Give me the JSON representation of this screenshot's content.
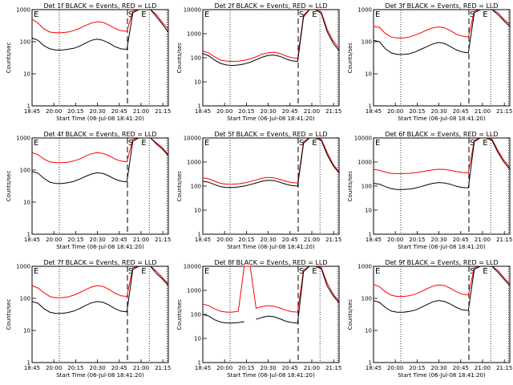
{
  "chart_data": [
    {
      "type": "line",
      "title": "Det 1f  BLACK = Events, RED = LLD",
      "xlabel": "Start Time (06-Jul-08 18:41:20)",
      "ylabel": "Counts/sec",
      "x_tick_labels": [
        "18:45",
        "20:00",
        "20:15",
        "20:30",
        "20:45",
        "21:00",
        "21:15"
      ],
      "y_tick_labels": [
        "1",
        "10",
        "100",
        "1000"
      ],
      "ylim": [
        1,
        1000
      ],
      "yscale": "log",
      "markers": [
        "S",
        "E"
      ],
      "series": [
        {
          "name": "LLD",
          "color": "#ff0000",
          "values": [
            500,
            380,
            250,
            200,
            190,
            190,
            200,
            220,
            260,
            320,
            380,
            420,
            400,
            330,
            260,
            220,
            210,
            900,
            1000,
            1000,
            1000,
            700,
            400,
            250
          ]
        },
        {
          "name": "Events",
          "color": "#000000",
          "values": [
            130,
            110,
            75,
            60,
            55,
            55,
            58,
            62,
            72,
            90,
            110,
            120,
            110,
            90,
            70,
            60,
            58,
            800,
            1000,
            1000,
            1000,
            600,
            350,
            200
          ]
        }
      ]
    },
    {
      "type": "line",
      "title": "Det 2f  BLACK = Events, RED = LLD",
      "xlabel": "Start Time (06-Jul-08 18:41:20)",
      "ylabel": "Counts/sec",
      "x_tick_labels": [
        "18:45",
        "20:00",
        "20:15",
        "20:30",
        "20:45",
        "21:00",
        "21:15"
      ],
      "y_tick_labels": [
        "1",
        "10",
        "100",
        "1000",
        "10000"
      ],
      "ylim": [
        1,
        10000
      ],
      "yscale": "log",
      "markers": [
        "S",
        "E"
      ],
      "series": [
        {
          "name": "LLD",
          "color": "#ff0000",
          "values": [
            190,
            160,
            110,
            80,
            72,
            70,
            72,
            78,
            90,
            110,
            140,
            160,
            170,
            150,
            120,
            100,
            95,
            6000,
            10000,
            10000,
            8000,
            1500,
            500,
            250
          ]
        },
        {
          "name": "Events",
          "color": "#000000",
          "values": [
            150,
            120,
            80,
            58,
            50,
            48,
            50,
            55,
            65,
            82,
            105,
            125,
            130,
            115,
            90,
            75,
            70,
            5000,
            10000,
            10000,
            7000,
            1200,
            400,
            200
          ]
        }
      ]
    },
    {
      "type": "line",
      "title": "Det 3f  BLACK = Events, RED = LLD",
      "xlabel": "Start Time (06-Jul-08 18:41:20)",
      "ylabel": "Counts/sec",
      "x_tick_labels": [
        "18:45",
        "20:00",
        "20:15",
        "20:30",
        "20:45",
        "21:00",
        "21:15"
      ],
      "y_tick_labels": [
        "1",
        "10",
        "100",
        "1000"
      ],
      "ylim": [
        1,
        1000
      ],
      "yscale": "log",
      "markers": [
        "S",
        "E"
      ],
      "series": [
        {
          "name": "LLD",
          "color": "#ff0000",
          "values": [
            300,
            280,
            180,
            140,
            130,
            130,
            140,
            160,
            190,
            230,
            270,
            290,
            270,
            220,
            170,
            150,
            140,
            900,
            1000,
            1000,
            1000,
            800,
            500,
            350
          ]
        },
        {
          "name": "Events",
          "color": "#000000",
          "values": [
            110,
            100,
            60,
            45,
            40,
            40,
            42,
            48,
            58,
            70,
            85,
            95,
            88,
            70,
            55,
            48,
            45,
            800,
            1000,
            1000,
            1000,
            700,
            450,
            300
          ]
        }
      ]
    },
    {
      "type": "line",
      "title": "Det 4f  BLACK = Events, RED = LLD",
      "xlabel": "Start Time (06-Jul-08 18:41:20)",
      "ylabel": "Counts/sec",
      "x_tick_labels": [
        "18:45",
        "20:00",
        "20:15",
        "20:30",
        "20:45",
        "21:00",
        "21:15"
      ],
      "y_tick_labels": [
        "1",
        "10",
        "100",
        "1000"
      ],
      "ylim": [
        1,
        1000
      ],
      "yscale": "log",
      "markers": [
        "S",
        "E"
      ],
      "series": [
        {
          "name": "LLD",
          "color": "#ff0000",
          "values": [
            350,
            300,
            220,
            180,
            170,
            170,
            175,
            190,
            220,
            270,
            320,
            350,
            330,
            280,
            220,
            190,
            180,
            900,
            1000,
            1000,
            1000,
            700,
            500,
            300
          ]
        },
        {
          "name": "Events",
          "color": "#000000",
          "values": [
            90,
            80,
            55,
            42,
            38,
            38,
            40,
            44,
            52,
            63,
            75,
            82,
            78,
            65,
            52,
            45,
            43,
            800,
            1000,
            1000,
            1000,
            650,
            450,
            280
          ]
        }
      ]
    },
    {
      "type": "line",
      "title": "Det 5f  BLACK = Events, RED = LLD",
      "xlabel": "Start Time (06-Jul-08 18:41:20)",
      "ylabel": "Counts/sec",
      "x_tick_labels": [
        "18:45",
        "20:00",
        "20:15",
        "20:30",
        "20:45",
        "21:00",
        "21:15"
      ],
      "y_tick_labels": [
        "1",
        "10",
        "100",
        "1000",
        "10000"
      ],
      "ylim": [
        1,
        10000
      ],
      "yscale": "log",
      "markers": [
        "S",
        "E"
      ],
      "series": [
        {
          "name": "LLD",
          "color": "#ff0000",
          "values": [
            220,
            200,
            160,
            130,
            120,
            120,
            125,
            135,
            155,
            180,
            210,
            230,
            220,
            190,
            160,
            140,
            135,
            7000,
            10000,
            10000,
            9000,
            2500,
            800,
            400
          ]
        },
        {
          "name": "Events",
          "color": "#000000",
          "values": [
            160,
            145,
            115,
            95,
            88,
            88,
            92,
            100,
            115,
            135,
            160,
            175,
            168,
            145,
            120,
            105,
            100,
            6000,
            10000,
            10000,
            8000,
            2000,
            700,
            350
          ]
        }
      ]
    },
    {
      "type": "line",
      "title": "Det 6f  BLACK = Events, RED = LLD",
      "xlabel": "Start Time (06-Jul-08 18:41:20)",
      "ylabel": "Counts/sec",
      "x_tick_labels": [
        "18:45",
        "20:00",
        "20:15",
        "20:30",
        "20:45",
        "21:00",
        "21:15"
      ],
      "y_tick_labels": [
        "1",
        "10",
        "100",
        "1000",
        "10000"
      ],
      "ylim": [
        1,
        10000
      ],
      "yscale": "log",
      "markers": [
        "S",
        "E"
      ],
      "series": [
        {
          "name": "LLD",
          "color": "#ff0000",
          "values": [
            500,
            450,
            380,
            340,
            330,
            330,
            340,
            360,
            390,
            430,
            470,
            500,
            490,
            450,
            400,
            370,
            360,
            8000,
            10000,
            10000,
            9000,
            3000,
            1200,
            600
          ]
        },
        {
          "name": "Events",
          "color": "#000000",
          "values": [
            130,
            120,
            95,
            78,
            72,
            72,
            75,
            82,
            95,
            112,
            130,
            140,
            135,
            118,
            98,
            88,
            85,
            7000,
            10000,
            10000,
            8000,
            2500,
            1000,
            500
          ]
        }
      ]
    },
    {
      "type": "line",
      "title": "Det 7f  BLACK = Events, RED = LLD",
      "xlabel": "Start Time (06-Jul-08 18:41:20)",
      "ylabel": "Counts/sec",
      "x_tick_labels": [
        "18:45",
        "20:00",
        "20:15",
        "20:30",
        "20:45",
        "21:00",
        "21:15"
      ],
      "y_tick_labels": [
        "1",
        "10",
        "100",
        "1000"
      ],
      "ylim": [
        1,
        1000
      ],
      "yscale": "log",
      "markers": [
        "S",
        "E"
      ],
      "series": [
        {
          "name": "LLD",
          "color": "#ff0000",
          "values": [
            250,
            210,
            150,
            115,
            105,
            105,
            110,
            125,
            150,
            185,
            225,
            250,
            235,
            190,
            145,
            120,
            115,
            900,
            1000,
            1000,
            1000,
            700,
            450,
            280
          ]
        },
        {
          "name": "Events",
          "color": "#000000",
          "values": [
            80,
            70,
            48,
            37,
            34,
            34,
            36,
            40,
            48,
            60,
            72,
            80,
            75,
            62,
            48,
            40,
            38,
            800,
            1000,
            1000,
            1000,
            600,
            400,
            250
          ]
        }
      ]
    },
    {
      "type": "line",
      "title": "Det 8f  BLACK = Events, RED = LLD",
      "xlabel": "Start Time (06-Jul-08 18:41:20)",
      "ylabel": "Counts/sec",
      "x_tick_labels": [
        "18:45",
        "20:00",
        "20:15",
        "20:30",
        "20:45",
        "21:00",
        "21:15"
      ],
      "y_tick_labels": [
        "1",
        "10",
        "100",
        "1000",
        "10000"
      ],
      "ylim": [
        1,
        10000
      ],
      "yscale": "log",
      "markers": [
        "S",
        "E"
      ],
      "series": [
        {
          "name": "LLD",
          "color": "#ff0000",
          "values": [
            270,
            230,
            170,
            135,
            125,
            125,
            135,
            10000,
            10000,
            180,
            210,
            230,
            220,
            185,
            150,
            130,
            125,
            7000,
            10000,
            10000,
            9000,
            2000,
            700,
            350
          ]
        },
        {
          "name": "Events",
          "color": "#000000",
          "values": [
            100,
            85,
            60,
            48,
            44,
            44,
            46,
            50,
            null,
            62,
            75,
            85,
            80,
            66,
            52,
            46,
            44,
            6000,
            10000,
            10000,
            8000,
            1500,
            600,
            300
          ]
        }
      ]
    },
    {
      "type": "line",
      "title": "Det 9f  BLACK = Events, RED = LLD",
      "xlabel": "Start Time (06-Jul-08 18:41:20)",
      "ylabel": "Counts/sec",
      "x_tick_labels": [
        "18:45",
        "20:00",
        "20:15",
        "20:30",
        "20:45",
        "21:00",
        "21:15"
      ],
      "y_tick_labels": [
        "1",
        "10",
        "100",
        "1000"
      ],
      "ylim": [
        1,
        1000
      ],
      "yscale": "log",
      "markers": [
        "S",
        "E"
      ],
      "series": [
        {
          "name": "LLD",
          "color": "#ff0000",
          "values": [
            270,
            230,
            160,
            125,
            115,
            115,
            120,
            135,
            160,
            200,
            240,
            265,
            250,
            205,
            160,
            135,
            128,
            900,
            1000,
            1000,
            1000,
            750,
            450,
            280
          ]
        },
        {
          "name": "Events",
          "color": "#000000",
          "values": [
            85,
            75,
            52,
            40,
            37,
            37,
            39,
            43,
            52,
            64,
            78,
            86,
            80,
            66,
            52,
            44,
            42,
            800,
            1000,
            1000,
            1000,
            650,
            400,
            250
          ]
        }
      ]
    }
  ]
}
